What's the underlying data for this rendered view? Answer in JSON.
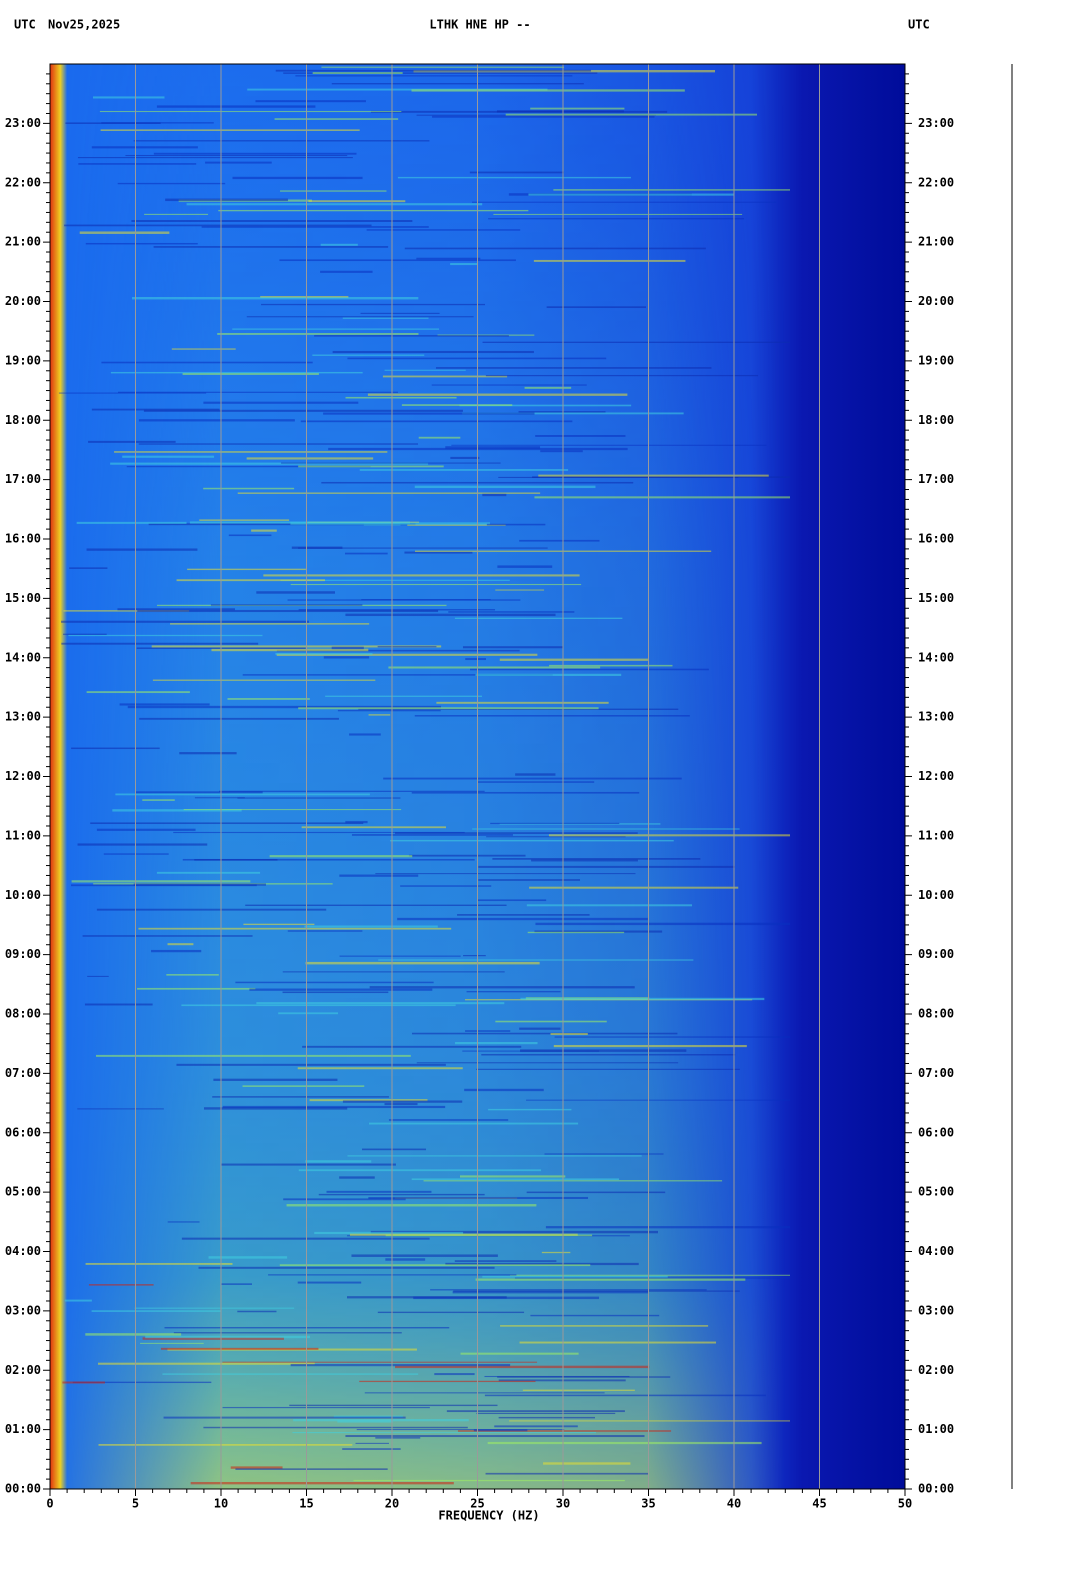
{
  "chart_data": {
    "type": "spectrogram",
    "title": "LTHK HNE HP --",
    "date": "Nov25,2025",
    "timezone_left": "UTC",
    "timezone_right": "UTC",
    "xlabel": "FREQUENCY (HZ)",
    "xlim": [
      0,
      50
    ],
    "xticks": [
      0,
      5,
      10,
      15,
      20,
      25,
      30,
      35,
      40,
      45,
      50
    ],
    "ylim": [
      0,
      24
    ],
    "yticks": [
      {
        "value": 0,
        "label": "00:00"
      },
      {
        "value": 1,
        "label": "01:00"
      },
      {
        "value": 2,
        "label": "02:00"
      },
      {
        "value": 3,
        "label": "03:00"
      },
      {
        "value": 4,
        "label": "04:00"
      },
      {
        "value": 5,
        "label": "05:00"
      },
      {
        "value": 6,
        "label": "06:00"
      },
      {
        "value": 7,
        "label": "07:00"
      },
      {
        "value": 8,
        "label": "08:00"
      },
      {
        "value": 9,
        "label": "09:00"
      },
      {
        "value": 10,
        "label": "10:00"
      },
      {
        "value": 11,
        "label": "11:00"
      },
      {
        "value": 12,
        "label": "12:00"
      },
      {
        "value": 13,
        "label": "13:00"
      },
      {
        "value": 14,
        "label": "14:00"
      },
      {
        "value": 15,
        "label": "15:00"
      },
      {
        "value": 16,
        "label": "16:00"
      },
      {
        "value": 17,
        "label": "17:00"
      },
      {
        "value": 18,
        "label": "18:00"
      },
      {
        "value": 19,
        "label": "19:00"
      },
      {
        "value": 20,
        "label": "20:00"
      },
      {
        "value": 21,
        "label": "21:00"
      },
      {
        "value": 22,
        "label": "22:00"
      },
      {
        "value": 23,
        "label": "23:00"
      }
    ],
    "grid": true
  }
}
